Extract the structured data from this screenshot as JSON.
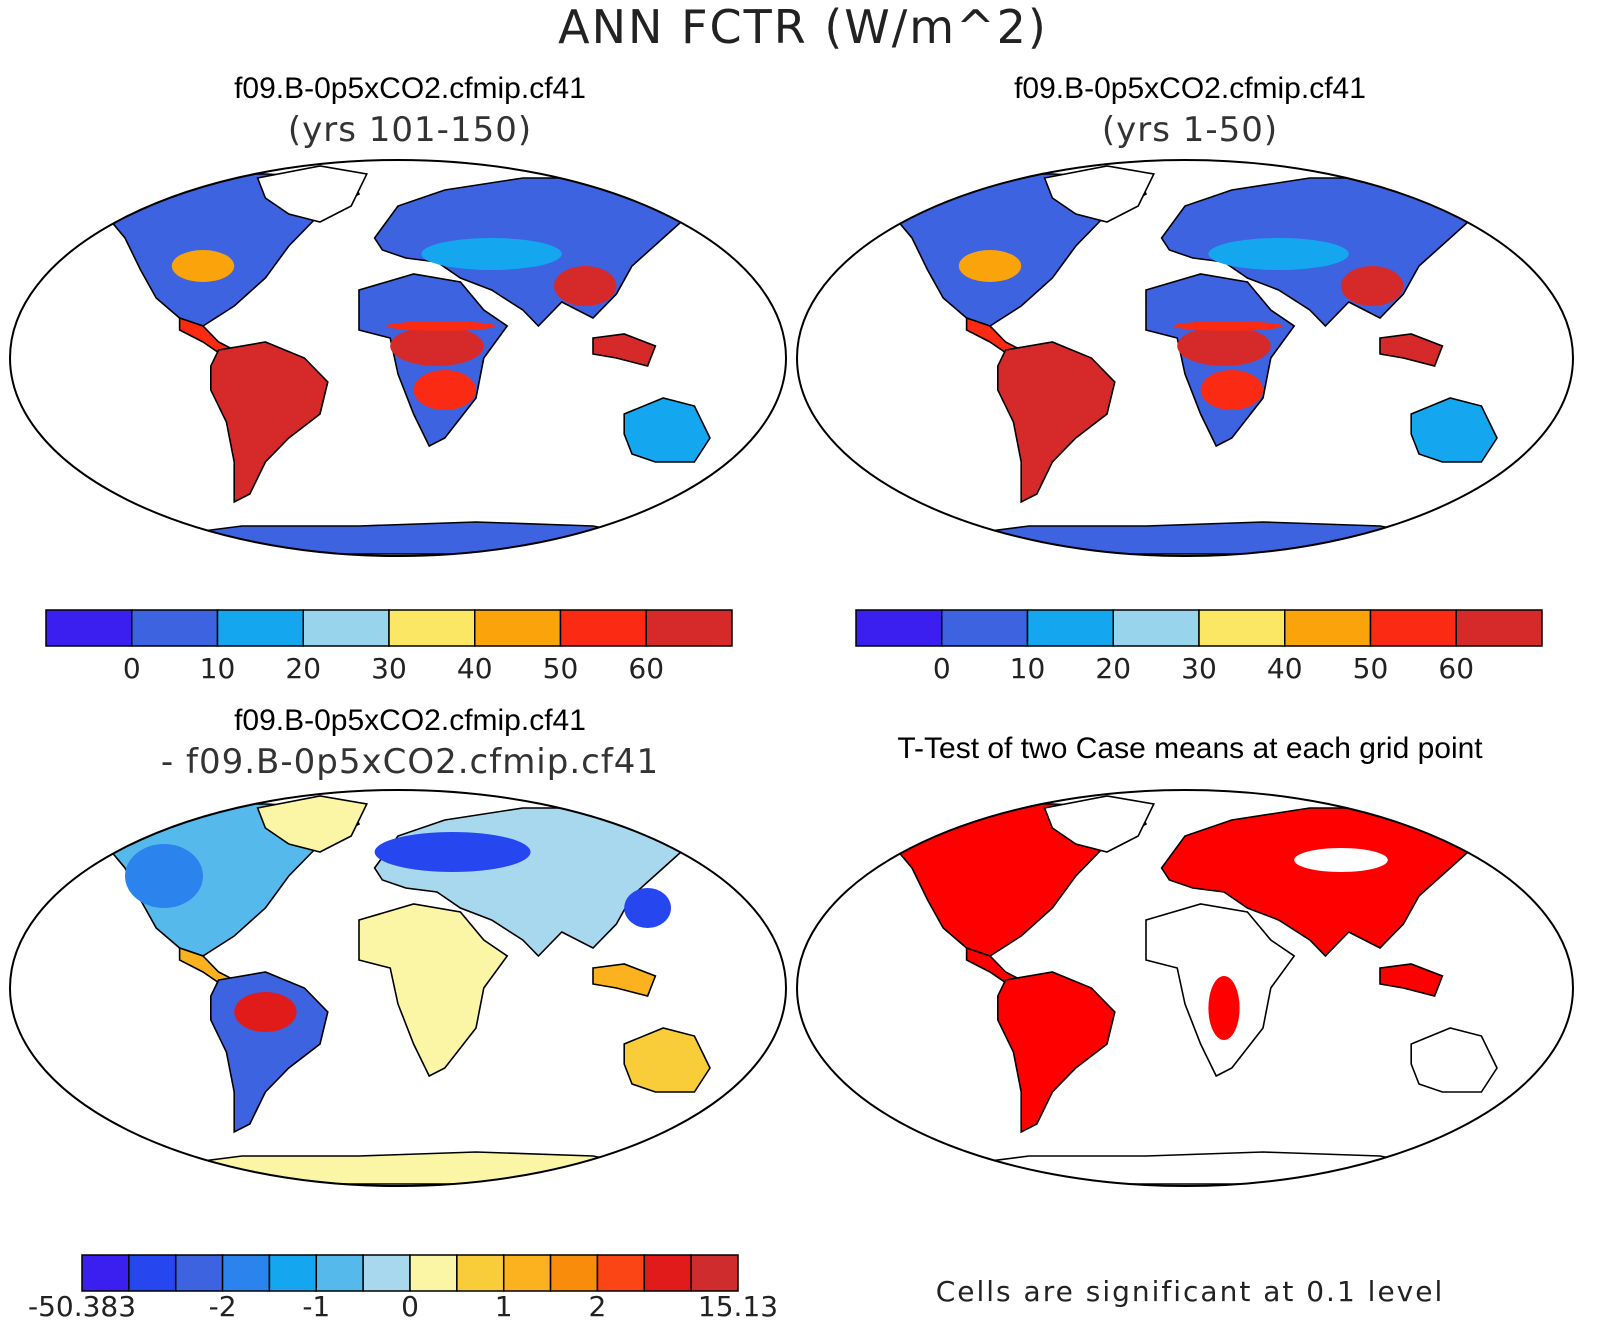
{
  "figure": {
    "title": "ANN FCTR (W/m^2)"
  },
  "panels": [
    {
      "id": "case1",
      "title": "f09.B-0p5xCO2.cfmip.cf41",
      "subtitle": "(yrs 101-150)",
      "colorbar": {
        "colors": [
          "#3a1ff0",
          "#3d63e0",
          "#14a7f0",
          "#99d4ed",
          "#fbe763",
          "#fba30a",
          "#fb2a12",
          "#d62a2a"
        ],
        "tick_labels": [
          "0",
          "10",
          "20",
          "30",
          "40",
          "50",
          "60"
        ]
      }
    },
    {
      "id": "case2",
      "title": "f09.B-0p5xCO2.cfmip.cf41",
      "subtitle": "(yrs 1-50)",
      "colorbar": {
        "colors": [
          "#3a1ff0",
          "#3d63e0",
          "#14a7f0",
          "#99d4ed",
          "#fbe763",
          "#fba30a",
          "#fb2a12",
          "#d62a2a"
        ],
        "tick_labels": [
          "0",
          "10",
          "20",
          "30",
          "40",
          "50",
          "60"
        ]
      }
    },
    {
      "id": "diff",
      "title": "f09.B-0p5xCO2.cfmip.cf41",
      "subtitle": "- f09.B-0p5xCO2.cfmip.cf41",
      "colorbar": {
        "colors": [
          "#3a1ff0",
          "#2646f0",
          "#3d63e0",
          "#2b83ee",
          "#14a7f0",
          "#55b9ec",
          "#a7d8ee",
          "#fbf5a6",
          "#f9cd3a",
          "#fbb21e",
          "#fa8c0c",
          "#fb4514",
          "#e11a1a",
          "#cf2d2d"
        ],
        "tick_labels": [
          "-50.383",
          "-2",
          "-1",
          "0",
          "1",
          "2",
          "15.13"
        ]
      }
    },
    {
      "id": "ttest",
      "title": "T-Test of two Case means at each grid point",
      "note": "Cells are significant at 0.1 level",
      "colors": {
        "significant": "#ff0000"
      }
    }
  ]
}
